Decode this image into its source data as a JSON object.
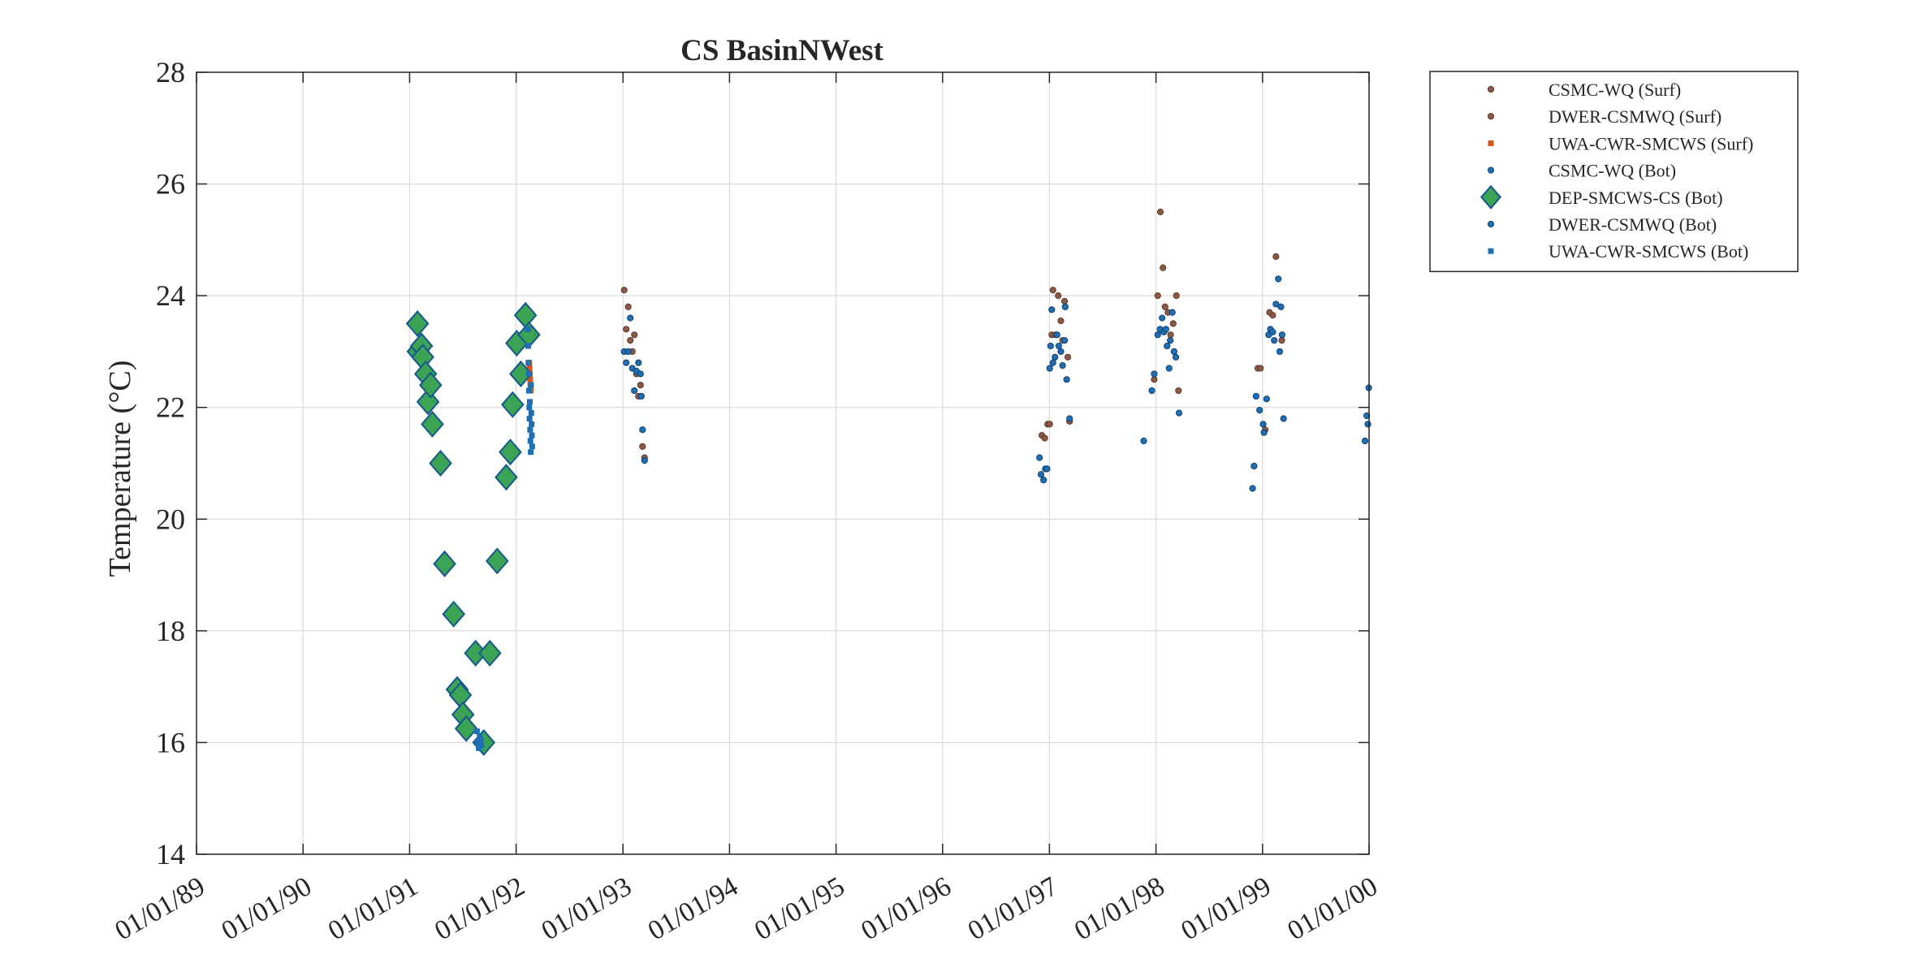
{
  "chart_data": {
    "type": "scatter",
    "title": "CS BasinNWest",
    "ylabel": "Temperature (°C)",
    "xlabel": "",
    "x_kind": "date",
    "xlim": [
      "1989-01-01",
      "2000-01-01"
    ],
    "ylim": [
      14,
      28
    ],
    "xticks": [
      {
        "value": "1989-01-01",
        "label": "01/01/89"
      },
      {
        "value": "1990-01-01",
        "label": "01/01/90"
      },
      {
        "value": "1991-01-01",
        "label": "01/01/91"
      },
      {
        "value": "1992-01-01",
        "label": "01/01/92"
      },
      {
        "value": "1993-01-01",
        "label": "01/01/93"
      },
      {
        "value": "1994-01-01",
        "label": "01/01/94"
      },
      {
        "value": "1995-01-01",
        "label": "01/01/95"
      },
      {
        "value": "1996-01-01",
        "label": "01/01/96"
      },
      {
        "value": "1997-01-01",
        "label": "01/01/97"
      },
      {
        "value": "1998-01-01",
        "label": "01/01/98"
      },
      {
        "value": "1999-01-01",
        "label": "01/01/99"
      },
      {
        "value": "2000-01-01",
        "label": "01/01/00"
      }
    ],
    "yticks": [
      14,
      16,
      18,
      20,
      22,
      24,
      26,
      28
    ],
    "grid": true,
    "legend_position": "outside-top-right",
    "series": [
      {
        "name": "CSMC-WQ (Surf)",
        "marker": "dot",
        "color": "#8c5a44",
        "points": [
          {
            "x": "1996-12-06",
            "y": 21.5
          },
          {
            "x": "1996-12-16",
            "y": 21.45
          },
          {
            "x": "1996-12-26",
            "y": 21.7
          },
          {
            "x": "1997-01-02",
            "y": 21.7
          },
          {
            "x": "1997-01-09",
            "y": 23.3
          },
          {
            "x": "1997-01-13",
            "y": 24.1
          },
          {
            "x": "1997-01-22",
            "y": 23.3
          },
          {
            "x": "1997-01-31",
            "y": 24.0
          },
          {
            "x": "1997-02-09",
            "y": 23.55
          },
          {
            "x": "1997-02-15",
            "y": 23.2
          },
          {
            "x": "1997-02-22",
            "y": 23.9
          },
          {
            "x": "1997-03-05",
            "y": 22.9
          },
          {
            "x": "1997-03-11",
            "y": 21.75
          },
          {
            "x": "1997-12-26",
            "y": 22.5
          },
          {
            "x": "1998-01-07",
            "y": 24.0
          },
          {
            "x": "1998-01-16",
            "y": 25.5
          },
          {
            "x": "1998-01-25",
            "y": 24.5
          },
          {
            "x": "1998-02-01",
            "y": 23.8
          },
          {
            "x": "1998-02-11",
            "y": 23.7
          },
          {
            "x": "1998-02-20",
            "y": 23.3
          },
          {
            "x": "1998-03-01",
            "y": 23.5
          },
          {
            "x": "1998-03-12",
            "y": 24.0
          },
          {
            "x": "1998-03-19",
            "y": 22.3
          },
          {
            "x": "1998-12-16",
            "y": 22.7
          },
          {
            "x": "1998-12-25",
            "y": 22.7
          },
          {
            "x": "1999-01-10",
            "y": 21.6
          },
          {
            "x": "1999-01-25",
            "y": 23.7
          },
          {
            "x": "1999-02-05",
            "y": 23.65
          },
          {
            "x": "1999-02-16",
            "y": 24.7
          },
          {
            "x": "1999-03-08",
            "y": 23.2
          }
        ]
      },
      {
        "name": "DWER-CSMWQ (Surf)",
        "marker": "dot",
        "color": "#8c5a44",
        "points": [
          {
            "x": "1993-01-05",
            "y": 24.1
          },
          {
            "x": "1993-01-12",
            "y": 23.4
          },
          {
            "x": "1993-01-19",
            "y": 23.8
          },
          {
            "x": "1993-01-26",
            "y": 23.2
          },
          {
            "x": "1993-02-02",
            "y": 23.0
          },
          {
            "x": "1993-02-09",
            "y": 23.3
          },
          {
            "x": "1993-02-16",
            "y": 22.6
          },
          {
            "x": "1993-02-23",
            "y": 22.2
          },
          {
            "x": "1993-03-02",
            "y": 22.4
          },
          {
            "x": "1993-03-09",
            "y": 21.3
          },
          {
            "x": "1993-03-16",
            "y": 21.1
          }
        ]
      },
      {
        "name": "UWA-CWR-SMCWS (Surf)",
        "marker": "square",
        "color": "#d95319",
        "points": [
          {
            "x": "1992-02-15",
            "y": 22.8
          },
          {
            "x": "1992-02-16",
            "y": 22.7
          },
          {
            "x": "1992-02-17",
            "y": 22.6
          },
          {
            "x": "1992-02-18",
            "y": 22.5
          },
          {
            "x": "1992-02-19",
            "y": 22.4
          },
          {
            "x": "1992-02-20",
            "y": 22.3
          }
        ]
      },
      {
        "name": "CSMC-WQ (Bot)",
        "marker": "dot",
        "color": "#1f6fb5",
        "points": [
          {
            "x": "1996-11-28",
            "y": 21.1
          },
          {
            "x": "1996-12-03",
            "y": 20.8
          },
          {
            "x": "1996-12-12",
            "y": 20.7
          },
          {
            "x": "1996-12-18",
            "y": 20.9
          },
          {
            "x": "1996-12-24",
            "y": 20.9
          },
          {
            "x": "1997-01-02",
            "y": 22.7
          },
          {
            "x": "1997-01-05",
            "y": 23.1
          },
          {
            "x": "1997-01-09",
            "y": 23.75
          },
          {
            "x": "1997-01-13",
            "y": 22.8
          },
          {
            "x": "1997-01-20",
            "y": 22.9
          },
          {
            "x": "1997-01-27",
            "y": 23.3
          },
          {
            "x": "1997-02-02",
            "y": 23.1
          },
          {
            "x": "1997-02-09",
            "y": 23.0
          },
          {
            "x": "1997-02-15",
            "y": 22.75
          },
          {
            "x": "1997-02-22",
            "y": 23.2
          },
          {
            "x": "1997-03-01",
            "y": 22.5
          },
          {
            "x": "1997-02-24",
            "y": 23.8
          },
          {
            "x": "1997-03-11",
            "y": 21.8
          },
          {
            "x": "1997-11-20",
            "y": 21.4
          },
          {
            "x": "1997-12-18",
            "y": 22.3
          },
          {
            "x": "1997-12-26",
            "y": 22.6
          },
          {
            "x": "1998-01-07",
            "y": 23.3
          },
          {
            "x": "1998-01-15",
            "y": 23.4
          },
          {
            "x": "1998-01-22",
            "y": 23.6
          },
          {
            "x": "1998-01-28",
            "y": 23.35
          },
          {
            "x": "1998-02-04",
            "y": 23.4
          },
          {
            "x": "1998-02-08",
            "y": 23.1
          },
          {
            "x": "1998-02-15",
            "y": 22.7
          },
          {
            "x": "1998-02-19",
            "y": 23.2
          },
          {
            "x": "1998-02-26",
            "y": 23.7
          },
          {
            "x": "1998-03-04",
            "y": 23.0
          },
          {
            "x": "1998-03-10",
            "y": 22.9
          },
          {
            "x": "1998-03-21",
            "y": 21.9
          },
          {
            "x": "1998-11-28",
            "y": 20.55
          },
          {
            "x": "1998-12-03",
            "y": 20.95
          },
          {
            "x": "1998-12-10",
            "y": 22.2
          },
          {
            "x": "1998-12-22",
            "y": 21.95
          },
          {
            "x": "1999-01-03",
            "y": 21.7
          },
          {
            "x": "1999-01-06",
            "y": 21.55
          },
          {
            "x": "1999-01-15",
            "y": 22.15
          },
          {
            "x": "1999-01-22",
            "y": 23.3
          },
          {
            "x": "1999-01-28",
            "y": 23.4
          },
          {
            "x": "1999-02-05",
            "y": 23.35
          },
          {
            "x": "1999-02-10",
            "y": 23.2
          },
          {
            "x": "1999-02-16",
            "y": 23.85
          },
          {
            "x": "1999-02-24",
            "y": 24.3
          },
          {
            "x": "1999-03-01",
            "y": 23.0
          },
          {
            "x": "1999-03-05",
            "y": 23.8
          },
          {
            "x": "1999-03-09",
            "y": 23.3
          },
          {
            "x": "1999-03-14",
            "y": 21.8
          },
          {
            "x": "1999-12-18",
            "y": 21.4
          },
          {
            "x": "1999-12-24",
            "y": 21.85
          },
          {
            "x": "1999-12-28",
            "y": 21.7
          },
          {
            "x": "1999-12-31",
            "y": 22.35
          }
        ]
      },
      {
        "name": "DEP-SMCWS-CS (Bot)",
        "marker": "diamond",
        "color": "#3aa354",
        "points": [
          {
            "x": "1991-01-28",
            "y": 23.5
          },
          {
            "x": "1991-01-30",
            "y": 23.0
          },
          {
            "x": "1991-02-11",
            "y": 23.1
          },
          {
            "x": "1991-02-15",
            "y": 22.9
          },
          {
            "x": "1991-02-25",
            "y": 22.6
          },
          {
            "x": "1991-03-05",
            "y": 22.1
          },
          {
            "x": "1991-03-14",
            "y": 22.4
          },
          {
            "x": "1991-03-20",
            "y": 21.7
          },
          {
            "x": "1991-04-17",
            "y": 21.0
          },
          {
            "x": "1991-05-01",
            "y": 19.2
          },
          {
            "x": "1991-06-01",
            "y": 18.3
          },
          {
            "x": "1991-06-13",
            "y": 16.95
          },
          {
            "x": "1991-06-24",
            "y": 16.85
          },
          {
            "x": "1991-07-03",
            "y": 16.5
          },
          {
            "x": "1991-07-14",
            "y": 16.25
          },
          {
            "x": "1991-08-15",
            "y": 17.6
          },
          {
            "x": "1991-09-12",
            "y": 16.0
          },
          {
            "x": "1991-10-03",
            "y": 17.6
          },
          {
            "x": "1991-10-28",
            "y": 19.25
          },
          {
            "x": "1991-11-28",
            "y": 20.75
          },
          {
            "x": "1991-12-12",
            "y": 21.2
          },
          {
            "x": "1991-12-20",
            "y": 22.05
          },
          {
            "x": "1992-01-03",
            "y": 23.15
          },
          {
            "x": "1992-01-17",
            "y": 22.6
          },
          {
            "x": "1992-02-02",
            "y": 23.65
          },
          {
            "x": "1992-02-14",
            "y": 23.3
          }
        ]
      },
      {
        "name": "DWER-CSMWQ (Bot)",
        "marker": "dot",
        "color": "#1f6fb5",
        "points": [
          {
            "x": "1993-01-05",
            "y": 23.0
          },
          {
            "x": "1993-01-12",
            "y": 22.8
          },
          {
            "x": "1993-01-19",
            "y": 23.0
          },
          {
            "x": "1993-01-26",
            "y": 23.6
          },
          {
            "x": "1993-02-02",
            "y": 22.7
          },
          {
            "x": "1993-02-09",
            "y": 22.3
          },
          {
            "x": "1993-02-16",
            "y": 22.65
          },
          {
            "x": "1993-02-23",
            "y": 22.8
          },
          {
            "x": "1993-03-02",
            "y": 22.6
          },
          {
            "x": "1993-03-05",
            "y": 22.2
          },
          {
            "x": "1993-03-09",
            "y": 21.6
          },
          {
            "x": "1993-03-16",
            "y": 21.05
          }
        ]
      },
      {
        "name": "UWA-CWR-SMCWS (Bot)",
        "marker": "square",
        "color": "#1f6fb5",
        "points": [
          {
            "x": "1991-08-20",
            "y": 16.2
          },
          {
            "x": "1991-08-23",
            "y": 16.0
          },
          {
            "x": "1991-08-26",
            "y": 15.9
          },
          {
            "x": "1991-08-29",
            "y": 16.1
          },
          {
            "x": "1991-09-01",
            "y": 16.05
          },
          {
            "x": "1991-09-04",
            "y": 15.95
          },
          {
            "x": "1992-02-10",
            "y": 23.4
          },
          {
            "x": "1992-02-11",
            "y": 23.1
          },
          {
            "x": "1992-02-12",
            "y": 22.8
          },
          {
            "x": "1992-02-13",
            "y": 22.6
          },
          {
            "x": "1992-02-14",
            "y": 22.3
          },
          {
            "x": "1992-02-15",
            "y": 22.0
          },
          {
            "x": "1992-02-16",
            "y": 21.8
          },
          {
            "x": "1992-02-17",
            "y": 22.1
          },
          {
            "x": "1992-02-18",
            "y": 21.6
          },
          {
            "x": "1992-02-19",
            "y": 21.4
          },
          {
            "x": "1992-02-20",
            "y": 21.2
          },
          {
            "x": "1992-02-21",
            "y": 22.4
          },
          {
            "x": "1992-02-22",
            "y": 21.9
          },
          {
            "x": "1992-02-23",
            "y": 21.7
          },
          {
            "x": "1992-02-24",
            "y": 21.5
          },
          {
            "x": "1992-02-25",
            "y": 21.3
          }
        ]
      }
    ]
  }
}
